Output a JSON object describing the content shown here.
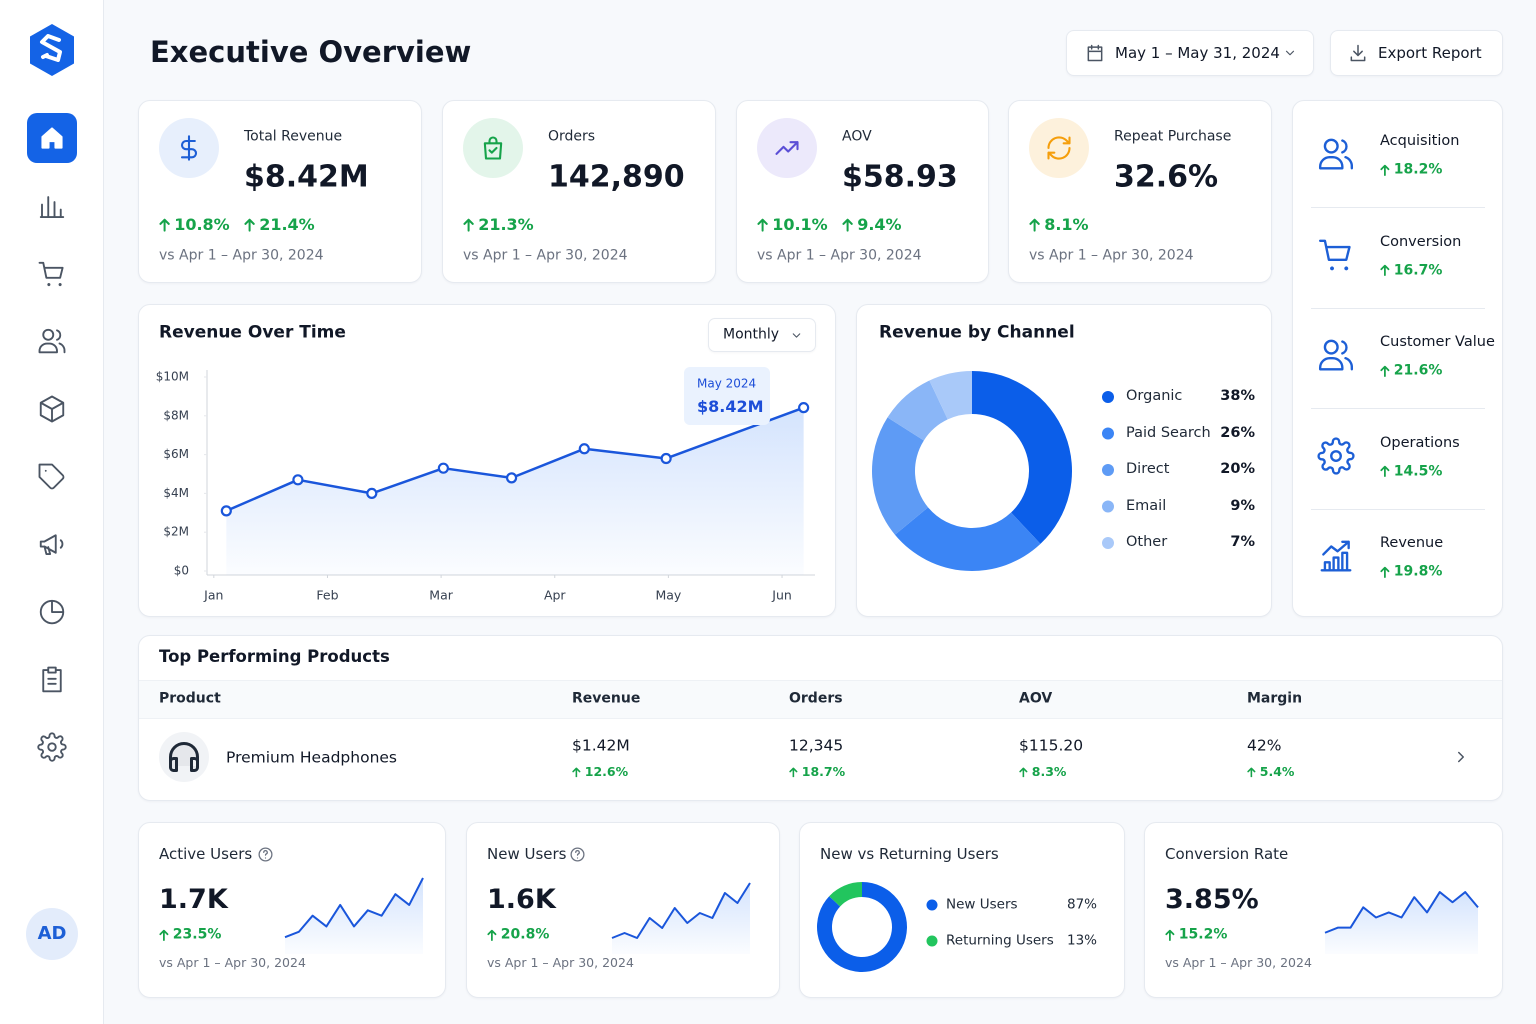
{
  "header": {
    "title": "Executive Overview",
    "date_range": "May 1 – May 31, 2024",
    "export": "Export Report"
  },
  "sidebar": {
    "avatar": "AD"
  },
  "kpis": [
    {
      "label": "Total Revenue",
      "value": "$8.42M",
      "changes": [
        "10.8%",
        "21.4%"
      ],
      "comparison": "vs Apr 1 – Apr 30, 2024"
    },
    {
      "label": "Orders",
      "value": "142,890",
      "changes": [
        "21.3%"
      ],
      "comparison": "vs Apr 1 – Apr 30, 2024"
    },
    {
      "label": "AOV",
      "value": "$58.93",
      "changes": [
        "10.1%",
        "9.4%"
      ],
      "comparison": "vs Apr 1 – Apr 30, 2024"
    },
    {
      "label": "Repeat Purchase",
      "value": "32.6%",
      "changes": [
        "8.1%"
      ],
      "comparison": "vs Apr 1 – Apr 30, 2024"
    }
  ],
  "pillars": [
    {
      "label": "Acquisition",
      "change": "18.2%"
    },
    {
      "label": "Conversion",
      "change": "16.7%"
    },
    {
      "label": "Customer Value",
      "change": "21.6%"
    },
    {
      "label": "Operations",
      "change": "14.5%"
    },
    {
      "label": "Revenue",
      "change": "19.8%"
    }
  ],
  "revenue_over_time": {
    "type": "line",
    "title": "Revenue Over Time",
    "period": "Monthly",
    "x": [
      0.11,
      0.74,
      1.39,
      2.02,
      2.62,
      3.26,
      3.98,
      5.19
    ],
    "values": [
      3.1,
      4.7,
      4.0,
      5.3,
      4.8,
      6.3,
      5.8,
      8.42
    ],
    "color": "#1a56db",
    "xlim": [
      -0.06,
      5.29
    ],
    "xticks": [
      {
        "value": 0,
        "label": "Jan"
      },
      {
        "value": 1,
        "label": "Feb"
      },
      {
        "value": 2,
        "label": "Mar"
      },
      {
        "value": 3,
        "label": "Apr"
      },
      {
        "value": 4,
        "label": "May"
      },
      {
        "value": 5,
        "label": "Jun"
      }
    ],
    "ylim": [
      0,
      10
    ],
    "yticks": [
      {
        "value": 0,
        "label": "$0"
      },
      {
        "value": 2,
        "label": "$2M"
      },
      {
        "value": 4,
        "label": "$4M"
      },
      {
        "value": 6,
        "label": "$6M"
      },
      {
        "value": 8,
        "label": "$8M"
      },
      {
        "value": 10,
        "label": "$10M"
      }
    ],
    "grid": false,
    "annotation": {
      "label": "May 2024",
      "value": "$8.42M"
    }
  },
  "revenue_by_channel": {
    "type": "pie",
    "title": "Revenue by Channel",
    "categories": [
      "Organic",
      "Paid Search",
      "Direct",
      "Email",
      "Other"
    ],
    "values": [
      38,
      26,
      20,
      9,
      7
    ],
    "value_labels": [
      "38%",
      "26%",
      "20%",
      "9%",
      "7%"
    ],
    "colors": [
      "#0b5ee9",
      "#3b85f5",
      "#5e9bf5",
      "#8ab6f7",
      "#a9c9f9"
    ]
  },
  "products": {
    "title": "Top Performing Products",
    "columns": [
      "Product",
      "Revenue",
      "Orders",
      "AOV",
      "Margin"
    ],
    "rows": [
      {
        "product": "Premium Headphones",
        "cells": [
          {
            "value": "$1.42M",
            "change": "12.6%"
          },
          {
            "value": "12,345",
            "change": "18.7%"
          },
          {
            "value": "$115.20",
            "change": "8.3%"
          },
          {
            "value": "42%",
            "change": "5.4%"
          }
        ]
      }
    ]
  },
  "metric_cards": [
    {
      "title": "Active Users",
      "value": "1.7K",
      "change": "23.5%",
      "comparison": "vs Apr 1 – Apr 30, 2024",
      "sparkline": {
        "type": "line",
        "values": [
          2,
          3,
          6,
          4,
          8,
          4,
          7,
          6,
          10,
          8,
          13
        ],
        "ylim": [
          0,
          13
        ],
        "color": "#1a56db"
      }
    },
    {
      "title": "New Users",
      "value": "1.6K",
      "change": "20.8%",
      "comparison": "vs Apr 1 – Apr 30, 2024",
      "sparkline": {
        "type": "line",
        "values": [
          2,
          3,
          2,
          6,
          4,
          8,
          5,
          7,
          6,
          11,
          9,
          13
        ],
        "ylim": [
          0,
          13
        ],
        "color": "#1a56db"
      }
    },
    {
      "title": "Conversion Rate",
      "value": "3.85%",
      "change": "15.2%",
      "comparison": "vs Apr 1 – Apr 30, 2024",
      "sparkline": {
        "type": "line",
        "values": [
          3,
          4,
          4,
          8,
          6,
          7,
          6,
          10,
          7,
          11,
          9,
          11,
          8
        ],
        "ylim": [
          0,
          12
        ],
        "color": "#1a56db"
      }
    }
  ],
  "new_vs_returning": {
    "type": "pie",
    "title": "New vs Returning Users",
    "categories": [
      "New Users",
      "Returning Users"
    ],
    "values": [
      87,
      13
    ],
    "value_labels": [
      "87%",
      "13%"
    ],
    "colors": [
      "#0b5ee9",
      "#22c55e"
    ]
  }
}
